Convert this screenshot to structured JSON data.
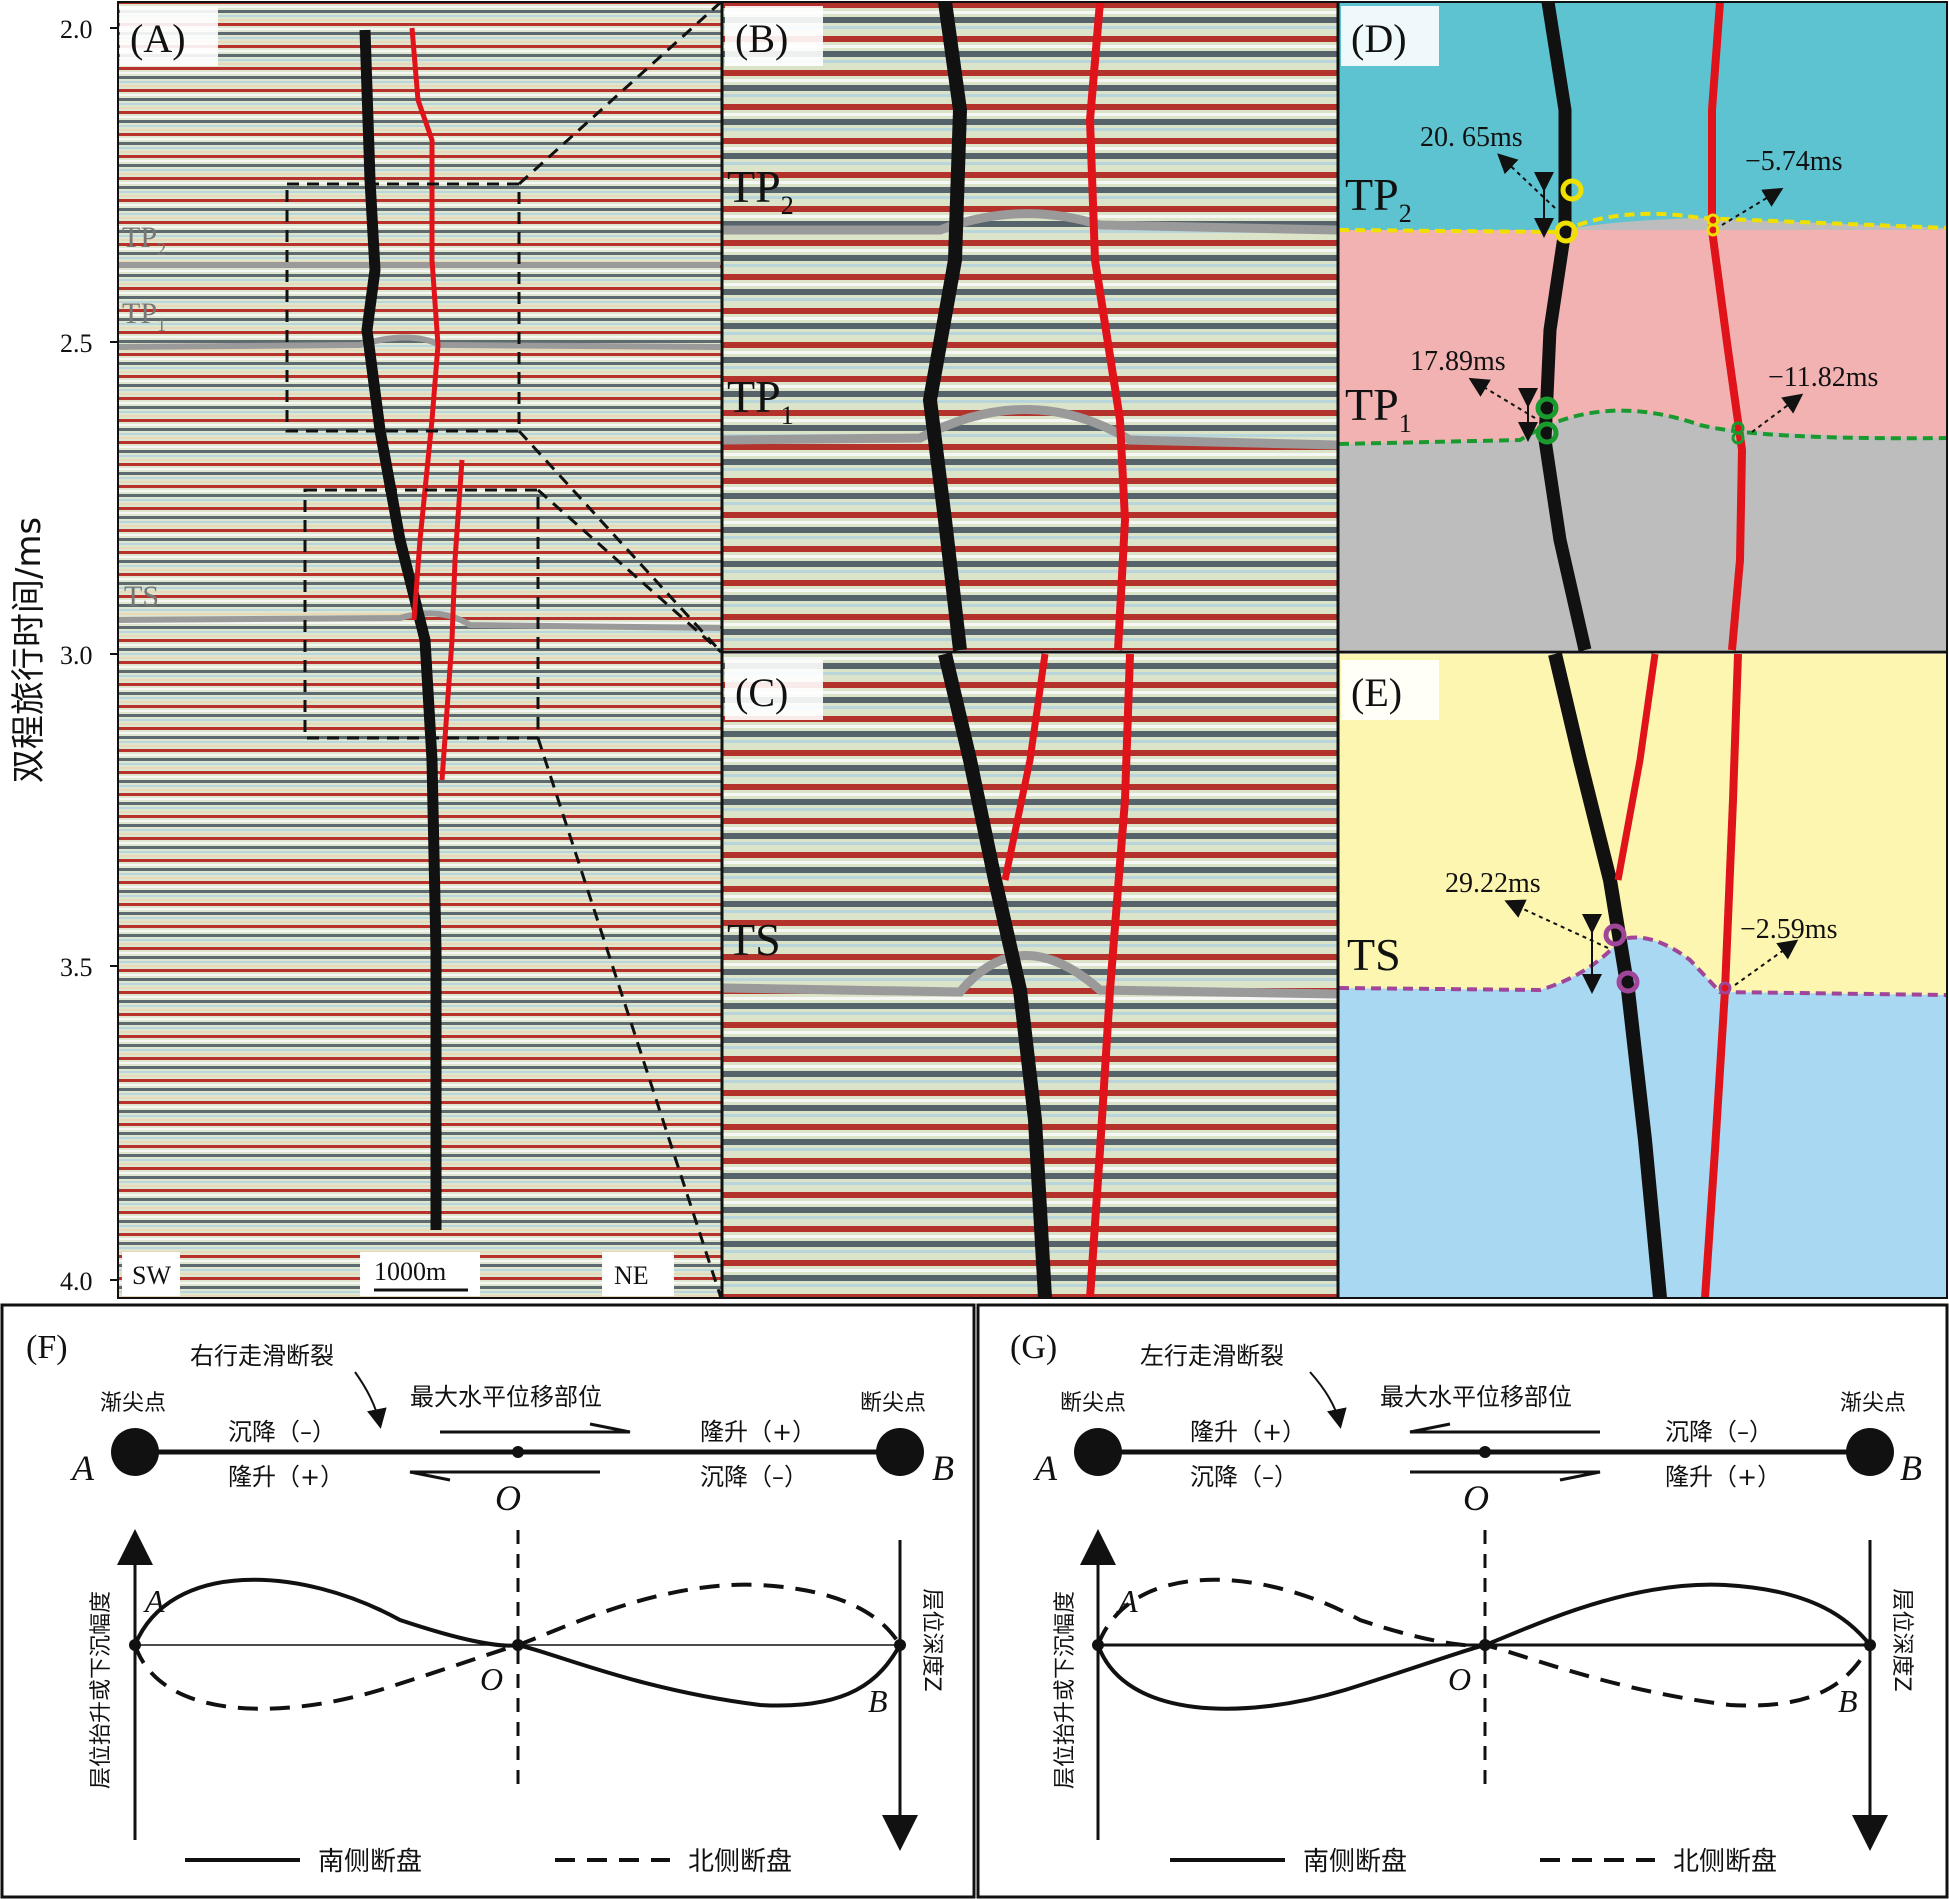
{
  "panels": {
    "A": {
      "label": "(A)",
      "y_axis_title": "双程旅行时间/ms",
      "y_ticks": [
        "2.0",
        "2.5",
        "3.0",
        "3.5",
        "4.0"
      ],
      "horizons": [
        "TP2",
        "TP1",
        "TS"
      ],
      "horizon_label_parts": {
        "TP": "TP",
        "sub2": "2",
        "sub1": "1",
        "TS": "TS"
      },
      "sw": "SW",
      "ne": "NE",
      "scale": "1000m"
    },
    "B": {
      "label": "(B)",
      "tp": "TP",
      "sub2": "2",
      "sub1": "1"
    },
    "C": {
      "label": "(C)",
      "ts": "TS"
    },
    "D": {
      "label": "(D)",
      "tp": "TP",
      "sub2": "2",
      "sub1": "1",
      "colors": {
        "top": "#5ec3d0",
        "middle": "#f2b2b2",
        "bottom": "#bdbdbd"
      },
      "annotations": {
        "tp2_black": "20. 65ms",
        "tp2_red": "−5.74ms",
        "tp1_black": "17.89ms",
        "tp1_red": "−11.82ms"
      }
    },
    "E": {
      "label": "(E)",
      "ts": "TS",
      "colors": {
        "top": "#fdf6b0",
        "bottom": "#a9d8f2"
      },
      "annotations": {
        "ts_black": "29.22ms",
        "ts_red": "−2.59ms"
      }
    },
    "F": {
      "label": "(F)",
      "fault_type": "右行走滑断裂",
      "max_disp": "最大水平位移部位",
      "left_point": "渐尖点",
      "right_point": "断尖点",
      "upper_left": "沉降（–）",
      "lower_left": "隆升（+）",
      "upper_right": "隆升（+）",
      "lower_right": "沉降（–）",
      "A": "A",
      "B": "B",
      "O": "O",
      "y_axis_title": "层位抬升或下沉幅度",
      "z_axis_title": "层位深度Z",
      "legend_solid": "南侧断盘",
      "legend_dashed": "北侧断盘"
    },
    "G": {
      "label": "(G)",
      "fault_type": "左行走滑断裂",
      "max_disp": "最大水平位移部位",
      "left_point": "断尖点",
      "right_point": "渐尖点",
      "upper_left": "隆升（+）",
      "lower_left": "沉降（–）",
      "upper_right": "沉降（–）",
      "lower_right": "隆升（+）",
      "A": "A",
      "B": "B",
      "O": "O",
      "y_axis_title": "层位抬升或下沉幅度",
      "z_axis_title": "层位深度Z",
      "legend_solid": "南侧断盘",
      "legend_dashed": "北侧断盘"
    }
  }
}
